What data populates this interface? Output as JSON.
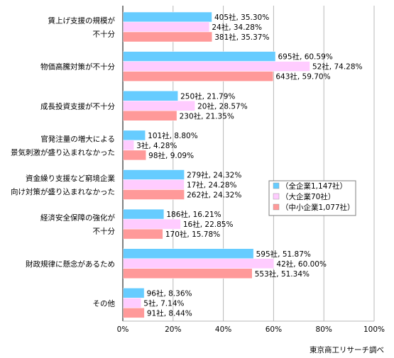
{
  "chart_data": {
    "type": "bar",
    "orientation": "horizontal",
    "categories": [
      [
        "賃上げ支援の規模が",
        "不十分"
      ],
      [
        "物価高騰対策が不十分"
      ],
      [
        "成長投資支援が不十分"
      ],
      [
        "官発注量の増大による",
        "景気刺激が盛り込まれなかった"
      ],
      [
        "資金繰り支援など窮境企業",
        "向け対策が盛り込まれなかった"
      ],
      [
        "経済安全保障の強化が",
        "不十分"
      ],
      [
        "財政規律に懸念があるため"
      ],
      [
        "その他"
      ]
    ],
    "series": [
      {
        "name": "（全企業1,147社）",
        "color": "#66ccff",
        "values": [
          35.3,
          60.59,
          21.79,
          8.8,
          24.32,
          16.21,
          51.87,
          8.36
        ],
        "labels": [
          "405社, 35.30%",
          "695社, 60.59%",
          "250社, 21.79%",
          "101社, 8.80%",
          "279社, 24.32%",
          "186社, 16.21%",
          "595社, 51.87%",
          "96社, 8.36%"
        ]
      },
      {
        "name": "（大企業70社）",
        "color": "#ffccff",
        "values": [
          34.28,
          74.28,
          28.57,
          4.28,
          24.28,
          22.85,
          60.0,
          7.14
        ],
        "labels": [
          "24社, 34.28%",
          "52社, 74.28%",
          "20社, 28.57%",
          "3社, 4.28%",
          "17社, 24.28%",
          "16社, 22.85%",
          "42社, 60.00%",
          "5社, 7.14%"
        ]
      },
      {
        "name": "（中小企業1,077社）",
        "color": "#ff9999",
        "values": [
          35.37,
          59.7,
          21.35,
          9.09,
          24.32,
          15.78,
          51.34,
          8.44
        ],
        "labels": [
          "381社, 35.37%",
          "643社, 59.70%",
          "230社, 21.35%",
          "98社, 9.09%",
          "262社, 24.32%",
          "170社, 15.78%",
          "553社, 51.34%",
          "91社, 8.44%"
        ]
      }
    ],
    "xlim": [
      0,
      100
    ],
    "xticks": [
      "0%",
      "20%",
      "40%",
      "60%",
      "80%",
      "100%"
    ],
    "grid": true,
    "legend_position": "right",
    "source": "東京商工リサーチ調べ"
  }
}
